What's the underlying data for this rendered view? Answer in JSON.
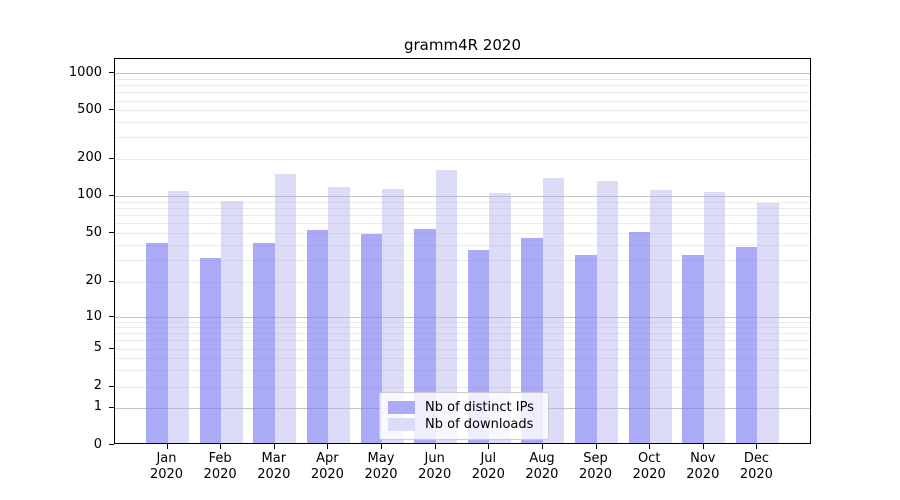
{
  "title": "gramm4R 2020",
  "chart_data": {
    "type": "bar",
    "categories": [
      {
        "month": "Jan",
        "year": "2020"
      },
      {
        "month": "Feb",
        "year": "2020"
      },
      {
        "month": "Mar",
        "year": "2020"
      },
      {
        "month": "Apr",
        "year": "2020"
      },
      {
        "month": "May",
        "year": "2020"
      },
      {
        "month": "Jun",
        "year": "2020"
      },
      {
        "month": "Jul",
        "year": "2020"
      },
      {
        "month": "Aug",
        "year": "2020"
      },
      {
        "month": "Sep",
        "year": "2020"
      },
      {
        "month": "Oct",
        "year": "2020"
      },
      {
        "month": "Nov",
        "year": "2020"
      },
      {
        "month": "Dec",
        "year": "2020"
      }
    ],
    "series": [
      {
        "name": "Nb of distinct IPs",
        "color": "#aaaaf7",
        "values": [
          40,
          30,
          40,
          51,
          47,
          52,
          35,
          44,
          32,
          49,
          32,
          37
        ]
      },
      {
        "name": "Nb of downloads",
        "color": "#dcdcf9",
        "values": [
          105,
          87,
          144,
          113,
          110,
          157,
          101,
          135,
          127,
          107,
          103,
          84
        ]
      }
    ],
    "y_axis": {
      "scale": "symlog",
      "ticks": [
        0,
        1,
        2,
        5,
        10,
        20,
        50,
        100,
        200,
        500,
        1000
      ]
    },
    "x_axis": {
      "label_format": "month over year, two lines"
    },
    "legend_position": "lower center",
    "grid": "horizontal, major lines at powers of 10, minor log subdivisions"
  }
}
